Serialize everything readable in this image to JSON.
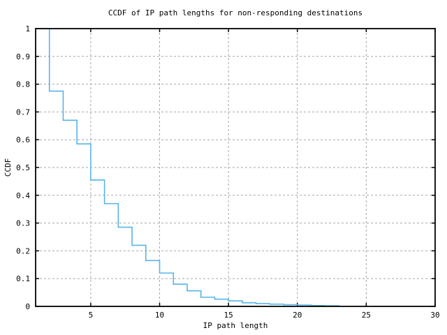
{
  "chart_data": {
    "type": "line",
    "subtype": "step-ccdf",
    "title": "CCDF of IP path lengths for non-responding destinations",
    "xlabel": "IP path length",
    "ylabel": "CCDF",
    "xlim": [
      1,
      30
    ],
    "ylim": [
      0,
      1
    ],
    "x_ticks": [
      5,
      10,
      15,
      20,
      25,
      30
    ],
    "y_ticks": [
      {
        "v": 0,
        "label": "0"
      },
      {
        "v": 0.1,
        "label": "0.1"
      },
      {
        "v": 0.2,
        "label": "0.2"
      },
      {
        "v": 0.3,
        "label": "0.3"
      },
      {
        "v": 0.4,
        "label": "0.4"
      },
      {
        "v": 0.5,
        "label": "0.5"
      },
      {
        "v": 0.6,
        "label": "0.6"
      },
      {
        "v": 0.7,
        "label": "0.7"
      },
      {
        "v": 0.8,
        "label": "0.8"
      },
      {
        "v": 0.9,
        "label": "0.9"
      },
      {
        "v": 1,
        "label": "1"
      }
    ],
    "grid": true,
    "legend": "none",
    "line_color": "#56B4E9",
    "grid_color": "#a6a6a6",
    "frame_color": "#000000",
    "steps": [
      {
        "x": 1,
        "ccdf": 1.0
      },
      {
        "x": 2,
        "ccdf": 0.775
      },
      {
        "x": 3,
        "ccdf": 0.67
      },
      {
        "x": 4,
        "ccdf": 0.585
      },
      {
        "x": 5,
        "ccdf": 0.455
      },
      {
        "x": 6,
        "ccdf": 0.37
      },
      {
        "x": 7,
        "ccdf": 0.285
      },
      {
        "x": 8,
        "ccdf": 0.22
      },
      {
        "x": 9,
        "ccdf": 0.165
      },
      {
        "x": 10,
        "ccdf": 0.12
      },
      {
        "x": 11,
        "ccdf": 0.08
      },
      {
        "x": 12,
        "ccdf": 0.056
      },
      {
        "x": 13,
        "ccdf": 0.033
      },
      {
        "x": 14,
        "ccdf": 0.026
      },
      {
        "x": 15,
        "ccdf": 0.02
      },
      {
        "x": 16,
        "ccdf": 0.013
      },
      {
        "x": 17,
        "ccdf": 0.01
      },
      {
        "x": 18,
        "ccdf": 0.008
      },
      {
        "x": 19,
        "ccdf": 0.006
      },
      {
        "x": 20,
        "ccdf": 0.005
      },
      {
        "x": 21,
        "ccdf": 0.003
      },
      {
        "x": 22,
        "ccdf": 0.002
      },
      {
        "x": 23,
        "ccdf": 0
      }
    ]
  }
}
